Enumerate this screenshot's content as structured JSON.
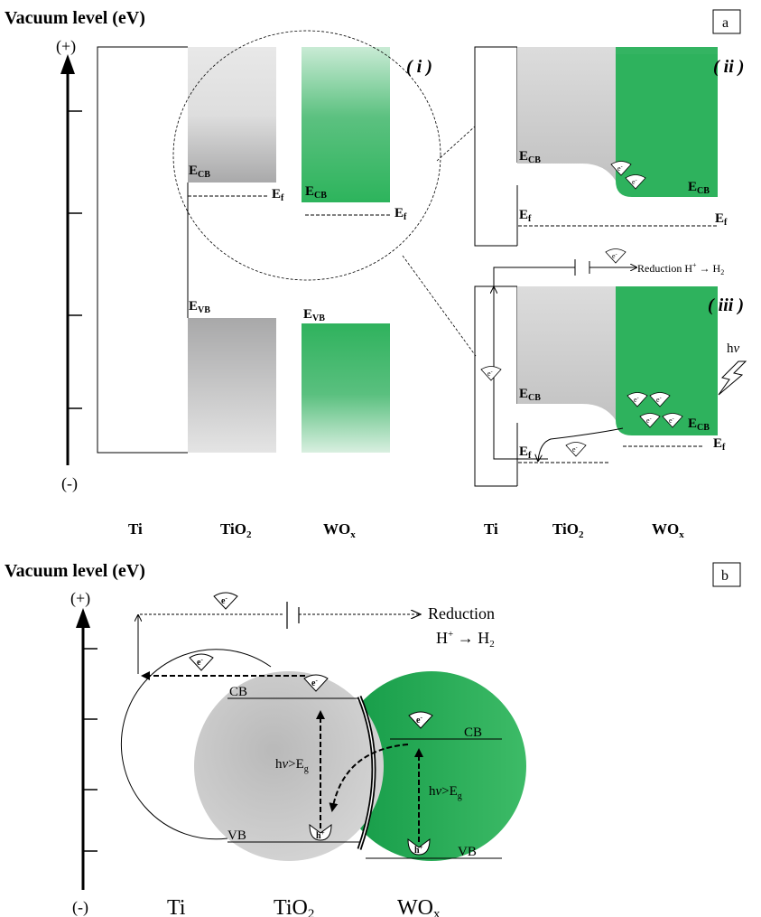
{
  "panel_a": {
    "title": "Vacuum level  (eV)",
    "panel_label": "a",
    "axis_plus": "(+)",
    "axis_minus": "(-)",
    "sub_i": "( i )",
    "sub_ii": "( ii )",
    "sub_iii": "( iii )",
    "e": "E",
    "sub_cb": "CB",
    "sub_vb": "VB",
    "sub_f": "f",
    "electron": "e",
    "minus": "-",
    "reduction": "Reduction H",
    "plus": "+",
    "arrow_h": " → H",
    "two": "2",
    "hv_h": "h",
    "hv_nu": "ν",
    "labels": {
      "ti": "Ti",
      "tio": "TiO",
      "wo": "WO",
      "sub2": "2",
      "subx": "x"
    }
  },
  "panel_b": {
    "title": "Vacuum level  (eV)",
    "panel_label": "b",
    "axis_plus": "(+)",
    "axis_minus": "(-)",
    "reduction": "Reduction",
    "h_plus_line_h": "H",
    "h_plus_line_arrow": " → H",
    "cb": "CB",
    "vb": "VB",
    "hv_h": "h",
    "hv_nu": "ν",
    "hv_gt": ">E",
    "hv_g": "g",
    "hole": "h",
    "labels": {
      "ti": "Ti",
      "tio": "TiO",
      "wo": "WO",
      "sub2": "2",
      "subx": "x"
    }
  }
}
